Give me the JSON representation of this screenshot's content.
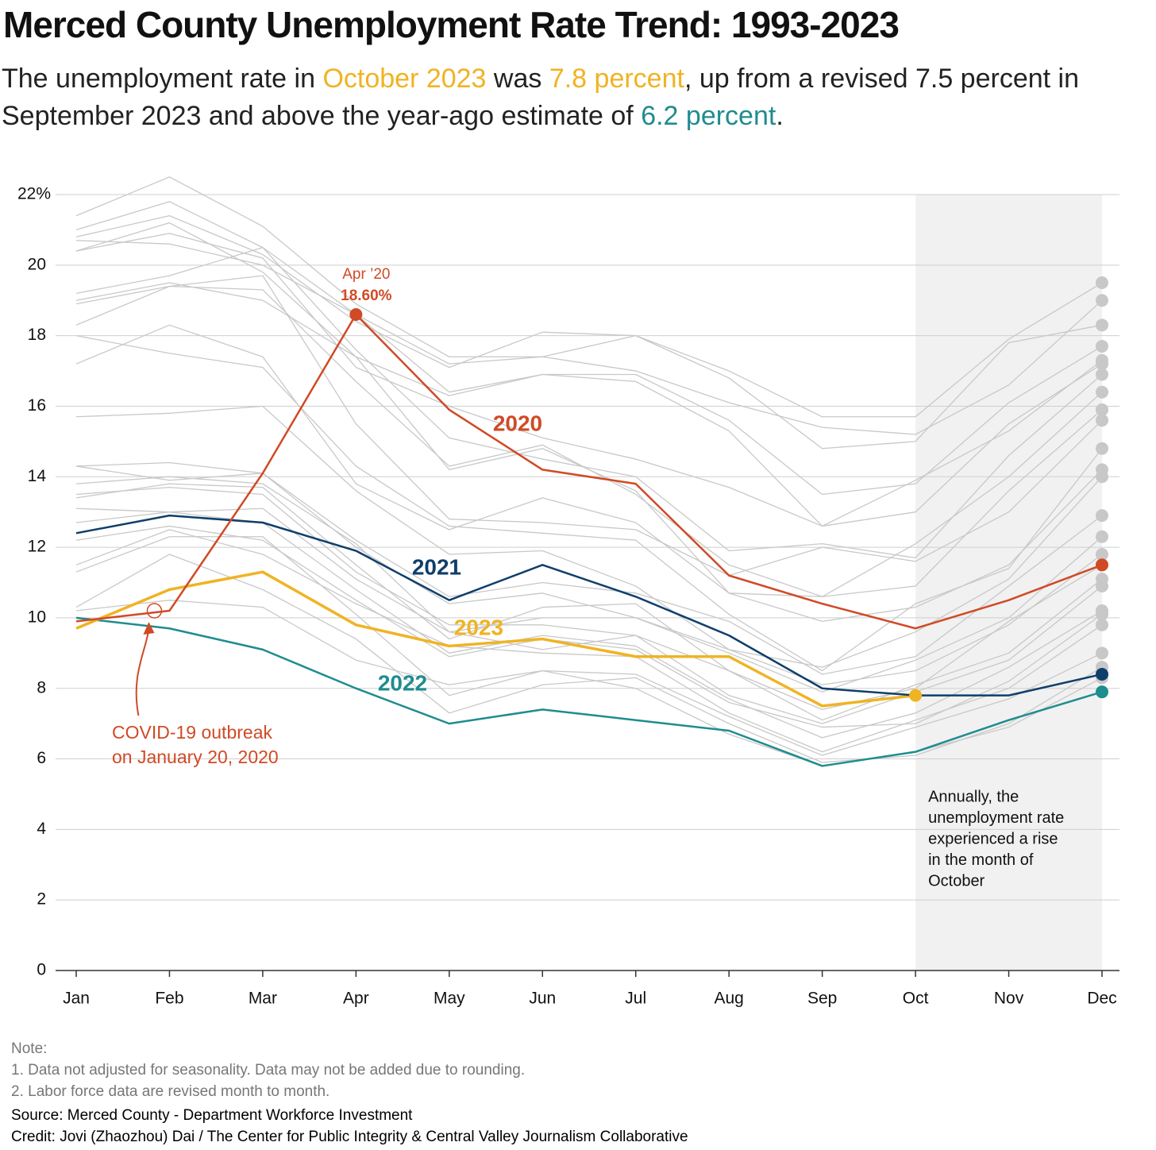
{
  "chart_data": {
    "type": "line",
    "title": "Merced County Unemployment Rate Trend: 1993-2023",
    "subtitle": [
      "The unemployment rate in ",
      "October 2023",
      " was ",
      "7.8 percent",
      ", up from a revised 7.5 percent in September 2023 and above the year-ago estimate of ",
      "6.2 percent",
      "."
    ],
    "categories": [
      "Jan",
      "Feb",
      "Mar",
      "Apr",
      "May",
      "Jun",
      "Jul",
      "Aug",
      "Sep",
      "Oct",
      "Nov",
      "Dec"
    ],
    "ylim": [
      0,
      22
    ],
    "yticks": [
      0,
      2,
      4,
      6,
      8,
      10,
      12,
      14,
      16,
      18,
      20,
      {
        "value": 22,
        "label": "22%"
      }
    ],
    "grid": true,
    "shaded_region": [
      "Oct",
      "Dec"
    ],
    "shaded_text": [
      "Annually, the",
      "unemployment rate",
      "experienced a rise",
      "in the month of",
      "October"
    ],
    "peak_annotation": {
      "label": "Apr ’20",
      "value_label": "18.60%"
    },
    "event_annotation": {
      "lines": [
        "COVID-19 outbreak",
        "on January 20, 2020"
      ],
      "category": "Feb"
    },
    "series": [
      {
        "color": "#c8c8c8",
        "values": [
          21.4,
          22.5,
          21.1,
          18.9,
          17.4,
          17.4,
          18.0,
          17.0,
          15.7,
          15.7,
          17.9,
          19.5
        ]
      },
      {
        "color": "#c8c8c8",
        "values": [
          21.0,
          21.8,
          20.5,
          18.6,
          17.2,
          17.4,
          17.0,
          16.1,
          15.4,
          15.2,
          16.6,
          19.0
        ]
      },
      {
        "color": "#c8c8c8",
        "values": [
          20.8,
          21.4,
          20.3,
          18.4,
          17.1,
          18.1,
          18.0,
          16.8,
          14.8,
          15.0,
          17.8,
          18.3
        ]
      },
      {
        "color": "#c8c8c8",
        "values": [
          20.4,
          21.2,
          19.8,
          17.4,
          16.3,
          16.9,
          16.9,
          15.6,
          13.5,
          13.8,
          16.1,
          17.7
        ]
      },
      {
        "color": "#c8c8c8",
        "values": [
          20.7,
          20.6,
          20.0,
          18.6,
          16.4,
          16.9,
          16.7,
          15.3,
          12.6,
          13.9,
          15.3,
          17.3
        ]
      },
      {
        "color": "#c8c8c8",
        "values": [
          20.4,
          20.9,
          20.2,
          17.1,
          16.0,
          15.1,
          14.5,
          13.7,
          12.6,
          13.0,
          15.5,
          17.2
        ]
      },
      {
        "color": "#c8c8c8",
        "values": [
          19.2,
          19.7,
          20.5,
          17.6,
          15.1,
          14.5,
          14.0,
          11.9,
          12.1,
          11.7,
          14.6,
          16.9
        ]
      },
      {
        "color": "#c8c8c8",
        "values": [
          18.9,
          19.4,
          19.3,
          16.7,
          14.3,
          14.9,
          13.5,
          11.5,
          10.6,
          12.1,
          14.0,
          16.4
        ]
      },
      {
        "color": "#c8c8c8",
        "values": [
          19.0,
          19.5,
          19.0,
          17.4,
          14.2,
          14.8,
          13.6,
          10.7,
          10.6,
          10.9,
          13.6,
          15.9
        ]
      },
      {
        "color": "#c8c8c8",
        "values": [
          18.3,
          19.4,
          19.7,
          15.5,
          12.8,
          12.7,
          12.5,
          11.2,
          12.0,
          11.6,
          13.0,
          15.6
        ]
      },
      {
        "color": "#c8c8c8",
        "values": [
          18.0,
          17.5,
          17.1,
          14.3,
          12.6,
          12.4,
          12.2,
          10.1,
          8.5,
          10.4,
          11.4,
          14.8
        ]
      },
      {
        "color": "#c8c8c8",
        "values": [
          17.2,
          18.3,
          17.4,
          13.8,
          12.5,
          13.4,
          12.7,
          10.7,
          9.9,
          10.3,
          11.5,
          14.2
        ]
      },
      {
        "color": "#c8c8c8",
        "values": [
          15.7,
          15.8,
          16.0,
          13.6,
          11.8,
          11.9,
          10.9,
          9.1,
          8.6,
          9.6,
          11.1,
          14.0
        ]
      },
      {
        "color": "#c8c8c8",
        "values": [
          14.3,
          14.4,
          14.1,
          12.2,
          10.6,
          11.0,
          10.7,
          9.9,
          8.4,
          8.9,
          10.9,
          12.9
        ]
      },
      {
        "color": "#c8c8c8",
        "values": [
          14.3,
          13.9,
          14.1,
          12.0,
          10.4,
          10.7,
          10.0,
          9.0,
          7.9,
          8.8,
          10.0,
          12.3
        ]
      },
      {
        "color": "#c8c8c8",
        "values": [
          13.8,
          14.0,
          13.8,
          12.1,
          9.6,
          10.0,
          10.0,
          9.1,
          8.1,
          8.5,
          9.8,
          11.8
        ]
      },
      {
        "color": "#c8c8c8",
        "values": [
          13.5,
          13.7,
          13.5,
          11.3,
          9.8,
          9.8,
          9.5,
          8.5,
          7.4,
          8.0,
          9.9,
          11.5
        ]
      },
      {
        "color": "#c8c8c8",
        "values": [
          13.4,
          13.8,
          13.7,
          11.5,
          9.4,
          10.3,
          10.4,
          8.5,
          7.1,
          8.1,
          9.0,
          11.1
        ]
      },
      {
        "color": "#c8c8c8",
        "values": [
          13.1,
          13.0,
          13.1,
          11.1,
          9.6,
          9.1,
          9.5,
          7.8,
          7.0,
          7.9,
          8.8,
          10.9
        ]
      },
      {
        "color": "#c8c8c8",
        "values": [
          12.7,
          13.0,
          12.7,
          10.8,
          9.0,
          9.5,
          9.2,
          7.7,
          6.6,
          7.3,
          8.6,
          10.2
        ]
      },
      {
        "color": "#c8c8c8",
        "values": [
          12.2,
          12.6,
          12.2,
          10.5,
          8.9,
          9.4,
          9.1,
          7.6,
          6.9,
          7.0,
          8.2,
          10.1
        ]
      },
      {
        "color": "#c8c8c8",
        "values": [
          11.5,
          12.5,
          11.8,
          10.4,
          9.2,
          9.0,
          8.9,
          7.3,
          6.2,
          7.1,
          8.0,
          9.8
        ]
      },
      {
        "color": "#c8c8c8",
        "values": [
          11.3,
          12.3,
          12.3,
          10.1,
          7.8,
          8.5,
          8.4,
          7.2,
          6.1,
          6.9,
          7.7,
          9.0
        ]
      },
      {
        "color": "#c8c8c8",
        "values": [
          10.3,
          11.8,
          10.8,
          9.4,
          7.3,
          8.1,
          8.3,
          7.0,
          5.9,
          6.1,
          7.0,
          8.6
        ]
      },
      {
        "color": "#c8c8c8",
        "values": [
          10.2,
          10.5,
          10.3,
          8.8,
          8.1,
          8.5,
          8.0,
          6.7,
          5.8,
          6.2,
          6.9,
          8.3
        ]
      },
      {
        "name": "2022",
        "color": "#1f8c8f",
        "values": [
          10.0,
          9.7,
          9.1,
          8.0,
          7.0,
          7.4,
          7.1,
          6.8,
          5.8,
          6.2,
          7.1,
          7.9
        ]
      },
      {
        "name": "2023",
        "color": "#f0b323",
        "values": [
          9.7,
          10.8,
          11.3,
          9.8,
          9.2,
          9.4,
          8.9,
          8.9,
          7.5,
          7.8,
          null,
          null
        ]
      },
      {
        "name": "2021",
        "color": "#0f3f6b",
        "values": [
          12.4,
          12.9,
          12.7,
          11.9,
          10.5,
          11.5,
          10.6,
          9.5,
          8.0,
          7.8,
          7.8,
          8.4
        ]
      },
      {
        "name": "2020",
        "color": "#d04a25",
        "values": [
          9.9,
          10.2,
          14.1,
          18.6,
          15.9,
          14.2,
          13.8,
          11.2,
          10.4,
          9.7,
          10.5,
          11.5
        ]
      }
    ],
    "notes": [
      "Note:",
      "1. Data not adjusted for seasonality. Data may not be added due to rounding.",
      "2. Labor force data are revised month to month."
    ],
    "source": "Source: Merced County - Department Workforce Investment",
    "credit": "Credit: Jovi (Zhaozhou) Dai / The Center for Public Integrity & Central Valley Journalism Collaborative"
  }
}
